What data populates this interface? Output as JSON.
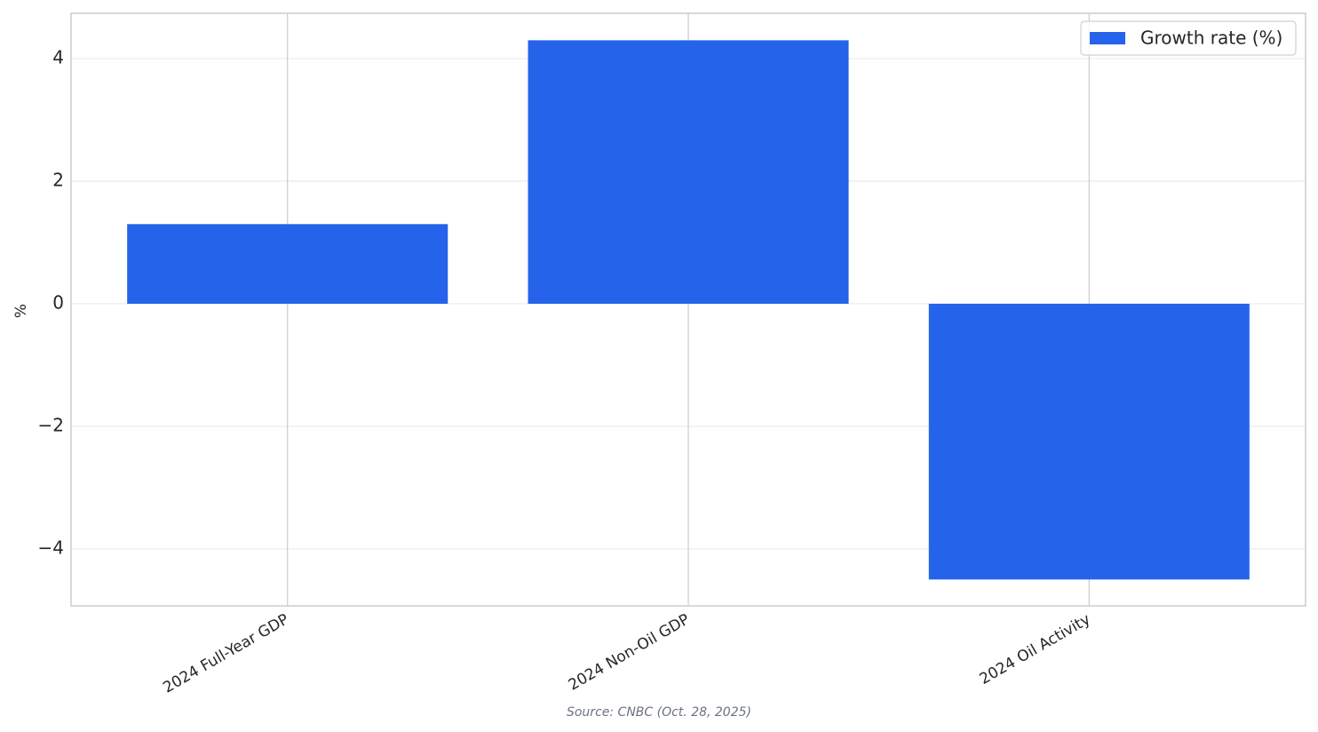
{
  "chart_data": {
    "type": "bar",
    "categories": [
      "2024 Full-Year GDP",
      "2024 Non-Oil GDP",
      "2024 Oil Activity"
    ],
    "series": [
      {
        "name": "Growth rate (%)",
        "color": "#2563eb",
        "values": [
          1.3,
          4.3,
          -4.5
        ]
      }
    ],
    "y_label": "%",
    "source": "Source: CNBC (Oct. 28, 2025)",
    "ylim": [
      -4.93,
      4.74
    ],
    "yticks": [
      {
        "value": -4,
        "label": "−4"
      },
      {
        "value": -2,
        "label": "−2"
      },
      0,
      2,
      4
    ],
    "grid": true,
    "legend": "upper right"
  }
}
